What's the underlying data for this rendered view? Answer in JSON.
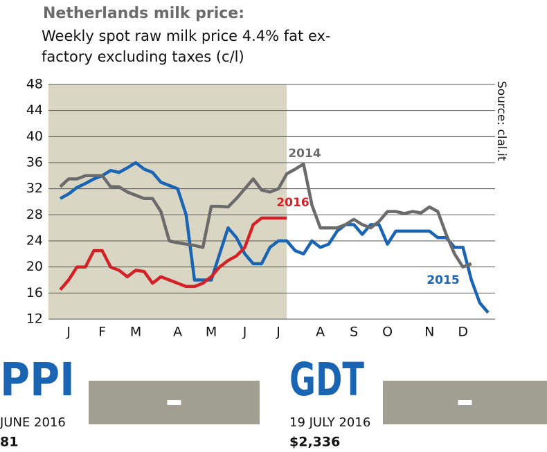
{
  "chart_data": {
    "type": "line",
    "title": "Netherlands milk price:",
    "subtitle": "Weekly spot raw milk price 4.4% fat ex-factory excluding taxes (c/l)",
    "source": "Source: clal.it",
    "categories": [
      null,
      "J",
      null,
      null,
      null,
      "F",
      null,
      null,
      null,
      "M",
      null,
      null,
      null,
      null,
      "A",
      null,
      null,
      null,
      "M",
      null,
      null,
      null,
      "J",
      null,
      null,
      null,
      "J",
      null,
      null,
      null,
      null,
      "A",
      null,
      null,
      null,
      "S",
      null,
      null,
      null,
      "O",
      null,
      null,
      null,
      null,
      "N",
      null,
      null,
      null,
      "D",
      null,
      null,
      null
    ],
    "series": [
      {
        "name": "2014",
        "color": "#6b6b6b",
        "values": [
          32.3,
          33.5,
          33.5,
          34,
          34,
          34,
          32.3,
          32.3,
          31.5,
          31,
          30.5,
          30.5,
          28.5,
          24,
          23.7,
          23.5,
          23.3,
          23,
          29.3,
          29.3,
          29.2,
          30.5,
          32,
          33.5,
          31.8,
          31.5,
          32,
          34.3,
          35,
          35.8,
          29.5,
          26,
          26,
          26,
          26.5,
          27.3,
          26.5,
          26,
          27,
          28.5,
          28.5,
          28.2,
          28.5,
          28.3,
          29.2,
          28.5,
          25,
          22,
          20,
          20.5,
          null,
          null
        ]
      },
      {
        "name": "2015",
        "color": "#1a64b4",
        "values": [
          30.5,
          31.2,
          32.2,
          32.8,
          33.5,
          34,
          34.8,
          34.5,
          35.2,
          36,
          35,
          34.5,
          33,
          32.5,
          32,
          28,
          18,
          18,
          18,
          22,
          26,
          24.5,
          22,
          20.5,
          20.5,
          23,
          24,
          24,
          22.5,
          22,
          24,
          23,
          23.5,
          25.5,
          26.5,
          26.5,
          25,
          26.5,
          26.5,
          23.5,
          25.5,
          25.5,
          25.5,
          25.5,
          25.5,
          24.5,
          24.5,
          23,
          23,
          18,
          14.5,
          13
        ]
      },
      {
        "name": "2016",
        "color": "#d42027",
        "values": [
          16.5,
          18,
          20,
          20,
          22.5,
          22.5,
          20,
          19.5,
          18.5,
          19.5,
          19.3,
          17.5,
          18.5,
          18,
          17.5,
          17,
          17,
          17.5,
          18.5,
          20,
          21,
          21.7,
          23,
          26.5,
          27.5,
          27.5,
          27.5,
          27.5,
          null,
          null,
          null,
          null,
          null,
          null,
          null,
          null,
          null,
          null,
          null,
          null,
          null,
          null,
          null,
          null,
          null,
          null,
          null,
          null,
          null,
          null,
          null,
          null
        ]
      }
    ],
    "ylim": [
      12,
      48
    ],
    "yticks": [
      12,
      16,
      20,
      24,
      28,
      32,
      36,
      40,
      44,
      48
    ],
    "grid": true
  },
  "panels": [
    {
      "title": "PPI",
      "date": "JUNE 2016",
      "value": "81"
    },
    {
      "title": "GDT",
      "date": "19 JULY 2016",
      "value": "$2,336"
    }
  ]
}
